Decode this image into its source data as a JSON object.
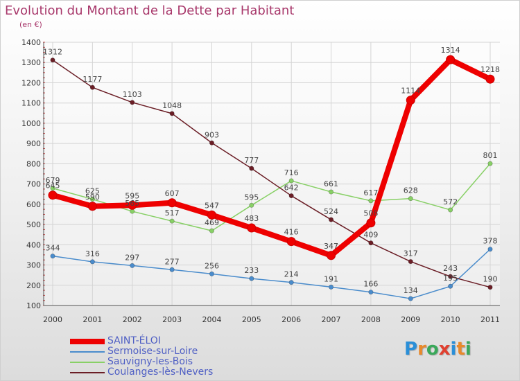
{
  "title": "Evolution du Montant de la Dette par Habitant",
  "subtitle": "(en €)",
  "logo": {
    "text": "Proxiti",
    "colors": [
      "#2a8fd8",
      "#e8892b",
      "#3aa85a",
      "#e04030",
      "#2a8fd8",
      "#e8892b",
      "#3aa85a"
    ]
  },
  "chart_data": {
    "type": "line",
    "title": "Evolution du Montant de la Dette par Habitant",
    "subtitle": "(en €)",
    "xlabel": "",
    "ylabel": "",
    "x": [
      "2000",
      "2001",
      "2002",
      "2003",
      "2004",
      "2005",
      "2006",
      "2007",
      "2008",
      "2009",
      "2010",
      "2011"
    ],
    "ylim": [
      100,
      1400
    ],
    "yticks": [
      100,
      200,
      300,
      400,
      500,
      600,
      700,
      800,
      900,
      1000,
      1100,
      1200,
      1300,
      1400
    ],
    "grid": true,
    "legend_position": "bottom-left",
    "series": [
      {
        "name": "SAINT-ÉLOI",
        "color": "#ee0000",
        "values": [
          645,
          590,
          595,
          607,
          547,
          483,
          416,
          347,
          508,
          1114,
          1314,
          1218
        ],
        "labels": [
          "645",
          "590",
          "595",
          "607",
          "547",
          "483",
          "416",
          "347",
          "508",
          "1114",
          "1314",
          "1218"
        ]
      },
      {
        "name": "Sermoise-sur-Loire",
        "color": "#4a8ccc",
        "values": [
          344,
          316,
          297,
          277,
          256,
          233,
          214,
          191,
          166,
          134,
          195,
          378
        ],
        "labels": [
          "344",
          "316",
          "297",
          "277",
          "256",
          "233",
          "214",
          "191",
          "166",
          "134",
          "195",
          "378"
        ]
      },
      {
        "name": "Sauvigny-les-Bois",
        "color": "#88d066",
        "values": [
          679,
          625,
          565,
          517,
          469,
          595,
          716,
          661,
          617,
          628,
          572,
          801
        ],
        "labels": [
          "679",
          "625",
          "565",
          "517",
          "469",
          "595",
          "716",
          "661",
          "617",
          "628",
          "572",
          "801"
        ]
      },
      {
        "name": "Coulanges-lès-Nevers",
        "color": "#6b1e26",
        "values": [
          1312,
          1177,
          1103,
          1048,
          903,
          777,
          642,
          524,
          409,
          317,
          243,
          190
        ],
        "labels": [
          "1312",
          "1177",
          "1103",
          "1048",
          "903",
          "777",
          "642",
          "524",
          "409",
          "317",
          "243",
          "190"
        ]
      }
    ]
  }
}
